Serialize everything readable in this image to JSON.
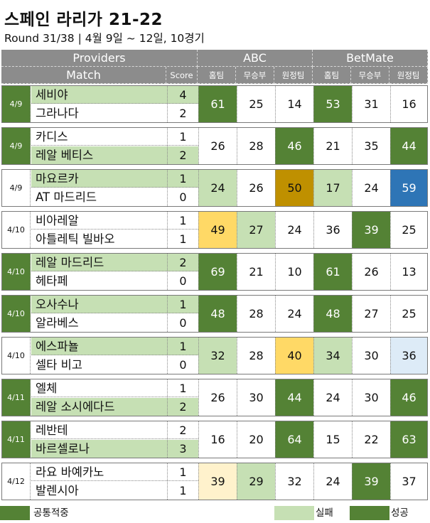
{
  "title": "스페인 라리가 21-22",
  "subtitle": "Round 31/38 | 4월 9일 ~ 12일, 10경기",
  "header": {
    "providers": "Providers",
    "match": "Match",
    "score": "Score",
    "provider_names": [
      "ABC",
      "BetMate"
    ],
    "outcome_labels": [
      "홈팀",
      "무승부",
      "원정팀"
    ]
  },
  "colors": {
    "header_bg": "#8c8c8c",
    "light_green": "#c6e0b4",
    "dark_green": "#548235",
    "gold": "#bf9000",
    "yellow": "#ffd966",
    "pale_yellow": "#fff2cc",
    "blue": "#2e75b6",
    "light_blue": "#ddebf7"
  },
  "matches": [
    {
      "date": "4/9",
      "home": "세비야",
      "away": "그라나다",
      "home_score": "4",
      "away_score": "2",
      "dark": true,
      "winner": "home",
      "abc": [
        "61",
        "25",
        "14"
      ],
      "abc_fill": [
        "dg",
        "",
        ""
      ],
      "bm": [
        "53",
        "31",
        "16"
      ],
      "bm_fill": [
        "dg",
        "",
        ""
      ]
    },
    {
      "date": "4/9",
      "home": "카디스",
      "away": "레알 베티스",
      "home_score": "1",
      "away_score": "2",
      "dark": true,
      "winner": "away",
      "abc": [
        "26",
        "28",
        "46"
      ],
      "abc_fill": [
        "",
        "",
        "dg"
      ],
      "bm": [
        "21",
        "35",
        "44"
      ],
      "bm_fill": [
        "",
        "",
        "dg"
      ]
    },
    {
      "date": "4/9",
      "home": "마요르카",
      "away": "AT 마드리드",
      "home_score": "1",
      "away_score": "0",
      "dark": false,
      "winner": "home",
      "abc": [
        "24",
        "26",
        "50"
      ],
      "abc_fill": [
        "lg",
        "",
        "gold"
      ],
      "bm": [
        "17",
        "24",
        "59"
      ],
      "bm_fill": [
        "lg",
        "",
        "blue"
      ]
    },
    {
      "date": "4/10",
      "home": "비아레알",
      "away": "아틀레틱 빌바오",
      "home_score": "1",
      "away_score": "1",
      "dark": false,
      "winner": "draw",
      "abc": [
        "49",
        "27",
        "24"
      ],
      "abc_fill": [
        "yel",
        "lg",
        ""
      ],
      "bm": [
        "36",
        "39",
        "25"
      ],
      "bm_fill": [
        "",
        "dg",
        ""
      ]
    },
    {
      "date": "4/10",
      "home": "레알 마드리드",
      "away": "헤타페",
      "home_score": "2",
      "away_score": "0",
      "dark": true,
      "winner": "home",
      "abc": [
        "69",
        "21",
        "10"
      ],
      "abc_fill": [
        "dg",
        "",
        ""
      ],
      "bm": [
        "61",
        "26",
        "13"
      ],
      "bm_fill": [
        "dg",
        "",
        ""
      ]
    },
    {
      "date": "4/10",
      "home": "오사수나",
      "away": "알라베스",
      "home_score": "1",
      "away_score": "0",
      "dark": true,
      "winner": "home",
      "abc": [
        "48",
        "28",
        "24"
      ],
      "abc_fill": [
        "dg",
        "",
        ""
      ],
      "bm": [
        "48",
        "27",
        "25"
      ],
      "bm_fill": [
        "dg",
        "",
        ""
      ]
    },
    {
      "date": "4/10",
      "home": "에스파뇰",
      "away": "셀타 비고",
      "home_score": "1",
      "away_score": "0",
      "dark": false,
      "winner": "home",
      "abc": [
        "32",
        "28",
        "40"
      ],
      "abc_fill": [
        "lg",
        "",
        "yel"
      ],
      "bm": [
        "34",
        "30",
        "36"
      ],
      "bm_fill": [
        "lg",
        "",
        "lblue"
      ]
    },
    {
      "date": "4/11",
      "home": "엘체",
      "away": "레알 소시에다드",
      "home_score": "1",
      "away_score": "2",
      "dark": true,
      "winner": "away",
      "abc": [
        "26",
        "30",
        "44"
      ],
      "abc_fill": [
        "",
        "",
        "dg"
      ],
      "bm": [
        "24",
        "30",
        "46"
      ],
      "bm_fill": [
        "",
        "",
        "dg"
      ]
    },
    {
      "date": "4/11",
      "home": "레반테",
      "away": "바르셀로나",
      "home_score": "2",
      "away_score": "3",
      "dark": true,
      "winner": "away",
      "abc": [
        "16",
        "20",
        "64"
      ],
      "abc_fill": [
        "",
        "",
        "dg"
      ],
      "bm": [
        "15",
        "22",
        "63"
      ],
      "bm_fill": [
        "",
        "",
        "dg"
      ]
    },
    {
      "date": "4/12",
      "home": "라요 바예카노",
      "away": "발렌시아",
      "home_score": "1",
      "away_score": "1",
      "dark": false,
      "winner": "draw",
      "abc": [
        "39",
        "29",
        "32"
      ],
      "abc_fill": [
        "pale",
        "lg",
        ""
      ],
      "bm": [
        "24",
        "39",
        "37"
      ],
      "bm_fill": [
        "",
        "dg",
        ""
      ]
    }
  ],
  "legend": [
    {
      "label": "공통적중",
      "color": "#548235"
    },
    {
      "label": "실패",
      "color": "#c6e0b4"
    },
    {
      "label": "성공",
      "color": "#548235"
    }
  ]
}
